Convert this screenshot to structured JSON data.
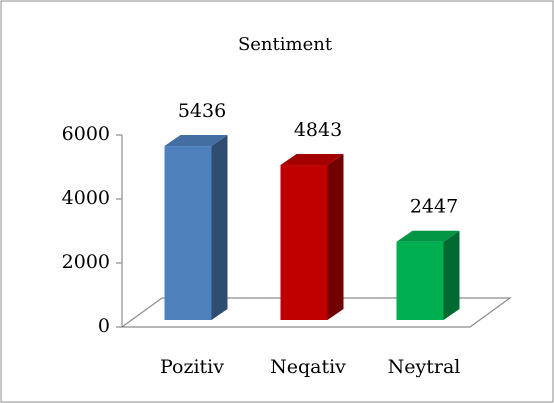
{
  "chart_data": {
    "type": "bar3d",
    "title": "Sentiment",
    "categories": [
      "Pozitiv",
      "Neqativ",
      "Neytral"
    ],
    "values": [
      5436,
      4843,
      2447
    ],
    "colors": [
      "#4f81bd",
      "#c00000",
      "#00b050"
    ],
    "ylim": [
      0,
      6000
    ],
    "yticks": [
      0,
      2000,
      4000,
      6000
    ]
  }
}
